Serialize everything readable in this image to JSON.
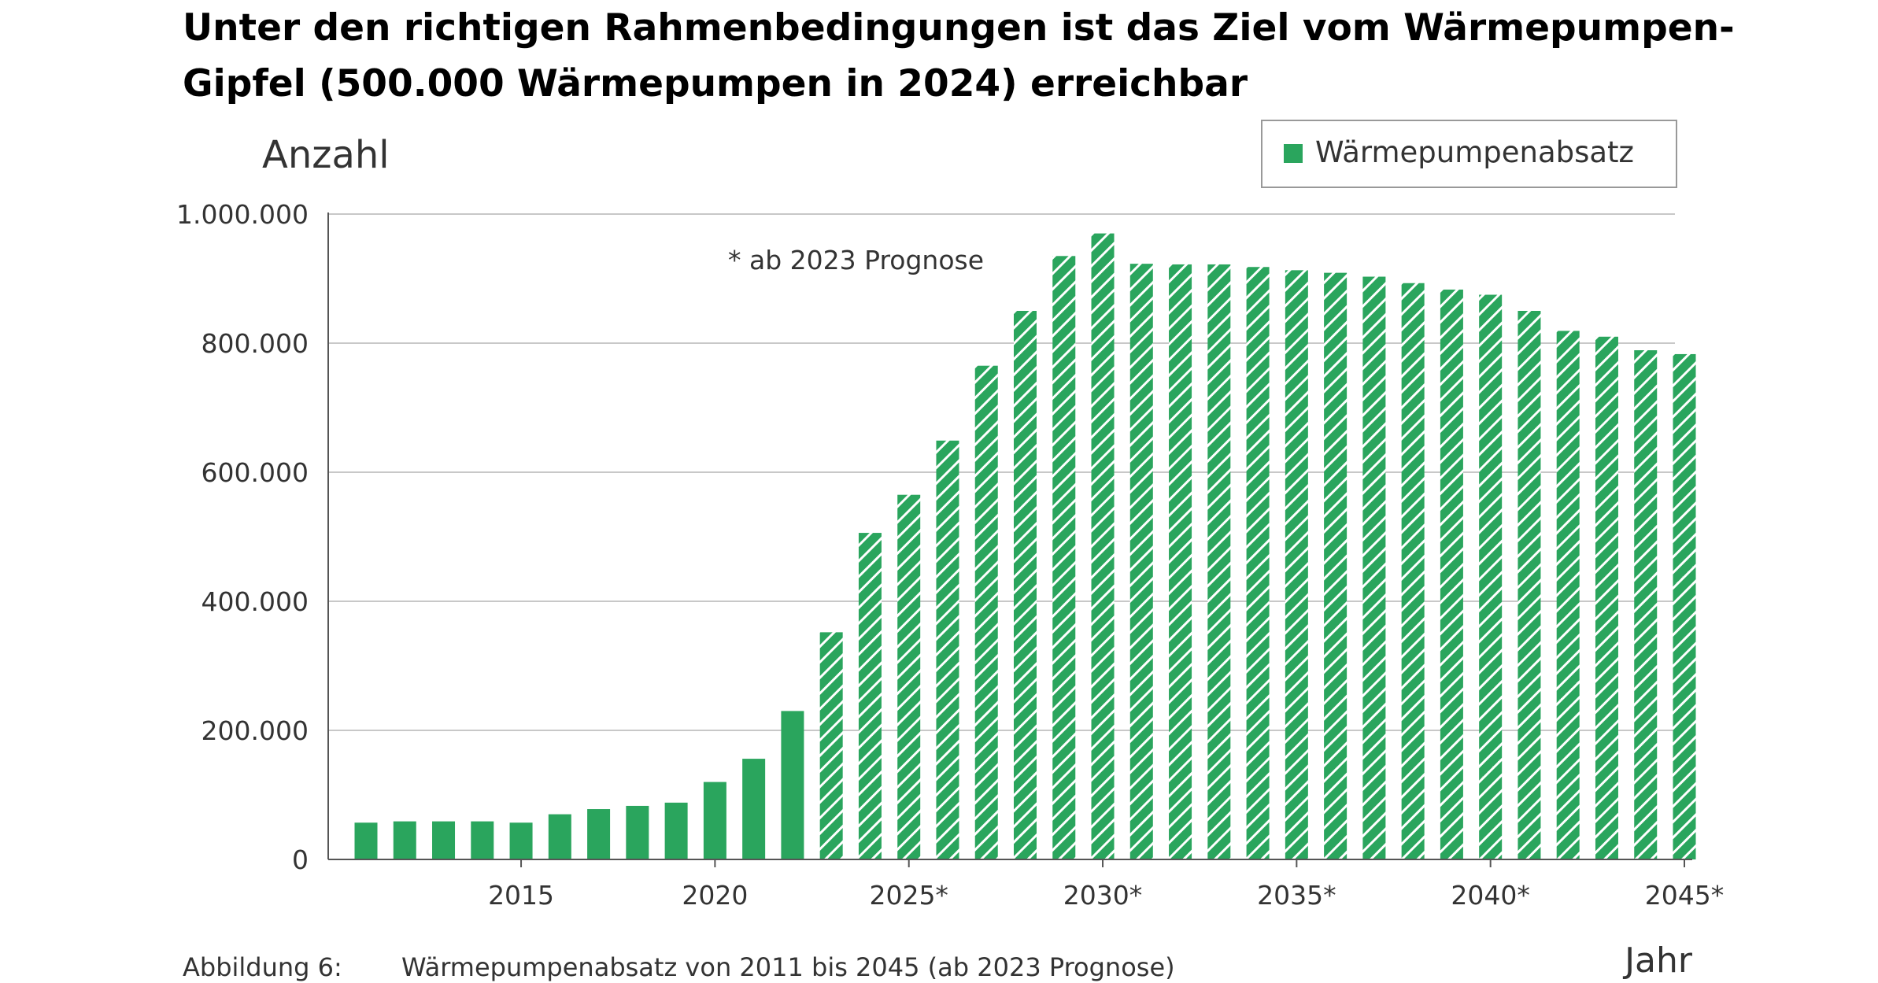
{
  "headline": {
    "line1": "Unter den richtigen Rahmenbedingungen ist das Ziel vom Wärmepumpen-",
    "line2": "Gipfel (500.000 Wärmepumpen in 2024) erreichbar"
  },
  "caption": {
    "label": "Abbildung 6:",
    "text": "Wärmepumpenabsatz von 2011 bis 2045 (ab 2023 Prognose)"
  },
  "colors": {
    "bar": "#2aa55d",
    "grid": "#c8c8c8",
    "axis": "#555555"
  },
  "chart_data": {
    "type": "bar",
    "ylabel": "Anzahl",
    "xlabel": "Jahr",
    "legend": {
      "label": "Wärmepumpenabsatz",
      "position": "top-right"
    },
    "annotation": "* ab 2023 Prognose",
    "forecast_from": 2023,
    "ylim": [
      0,
      1000000
    ],
    "grid": true,
    "y_ticks": [
      {
        "value": 0,
        "label": "0"
      },
      {
        "value": 200000,
        "label": "200.000"
      },
      {
        "value": 400000,
        "label": "400.000"
      },
      {
        "value": 600000,
        "label": "600.000"
      },
      {
        "value": 800000,
        "label": "800.000"
      },
      {
        "value": 1000000,
        "label": "1.000.000"
      }
    ],
    "x_ticks": [
      {
        "year": 2015,
        "label": "2015"
      },
      {
        "year": 2020,
        "label": "2020"
      },
      {
        "year": 2025,
        "label": "2025*"
      },
      {
        "year": 2030,
        "label": "2030*"
      },
      {
        "year": 2035,
        "label": "2035*"
      },
      {
        "year": 2040,
        "label": "2040*"
      },
      {
        "year": 2045,
        "label": "2045*"
      }
    ],
    "categories": [
      2011,
      2012,
      2013,
      2014,
      2015,
      2016,
      2017,
      2018,
      2019,
      2020,
      2021,
      2022,
      2023,
      2024,
      2025,
      2026,
      2027,
      2028,
      2029,
      2030,
      2031,
      2032,
      2033,
      2034,
      2035,
      2036,
      2037,
      2038,
      2039,
      2040,
      2041,
      2042,
      2043,
      2044,
      2045
    ],
    "values": [
      57000,
      59000,
      59000,
      59000,
      57000,
      70000,
      78000,
      83000,
      88000,
      120000,
      156000,
      230000,
      352000,
      506000,
      565000,
      649000,
      765000,
      850000,
      935000,
      970000,
      923000,
      922000,
      922000,
      918000,
      913000,
      909000,
      903000,
      893000,
      883000,
      875000,
      850000,
      819000,
      810000,
      789000,
      783000
    ]
  }
}
